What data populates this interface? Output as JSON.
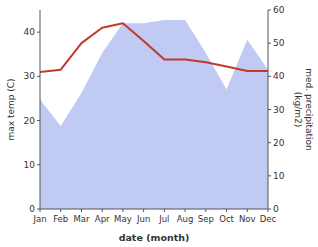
{
  "chart_data": {
    "type": "line",
    "categories": [
      "Jan",
      "Feb",
      "Mar",
      "Apr",
      "May",
      "Jun",
      "Jul",
      "Aug",
      "Sep",
      "Oct",
      "Nov",
      "Dec"
    ],
    "xlabel": "date (month)",
    "ylabel": "max temp (C)",
    "y2label": "med. precipitation\n(kg/m2)",
    "series": [
      {
        "type": "area",
        "axis": "y2",
        "color": "#b0bdf0",
        "values": [
          33,
          25,
          35,
          47,
          56,
          56,
          57,
          57,
          47,
          36,
          51,
          42
        ]
      },
      {
        "type": "line",
        "color": "#c0392b",
        "values": [
          31.0,
          31.5,
          37.5,
          41.0,
          42.0,
          38.0,
          33.8,
          33.8,
          33.2,
          32.2,
          31.2,
          31.2
        ]
      }
    ],
    "ylim": [
      0,
      45
    ],
    "yticks": [
      0,
      10,
      20,
      30,
      40
    ],
    "y2lim": [
      0,
      60
    ],
    "y2ticks": [
      0,
      10,
      20,
      30,
      40,
      50,
      60
    ],
    "grid": false
  }
}
